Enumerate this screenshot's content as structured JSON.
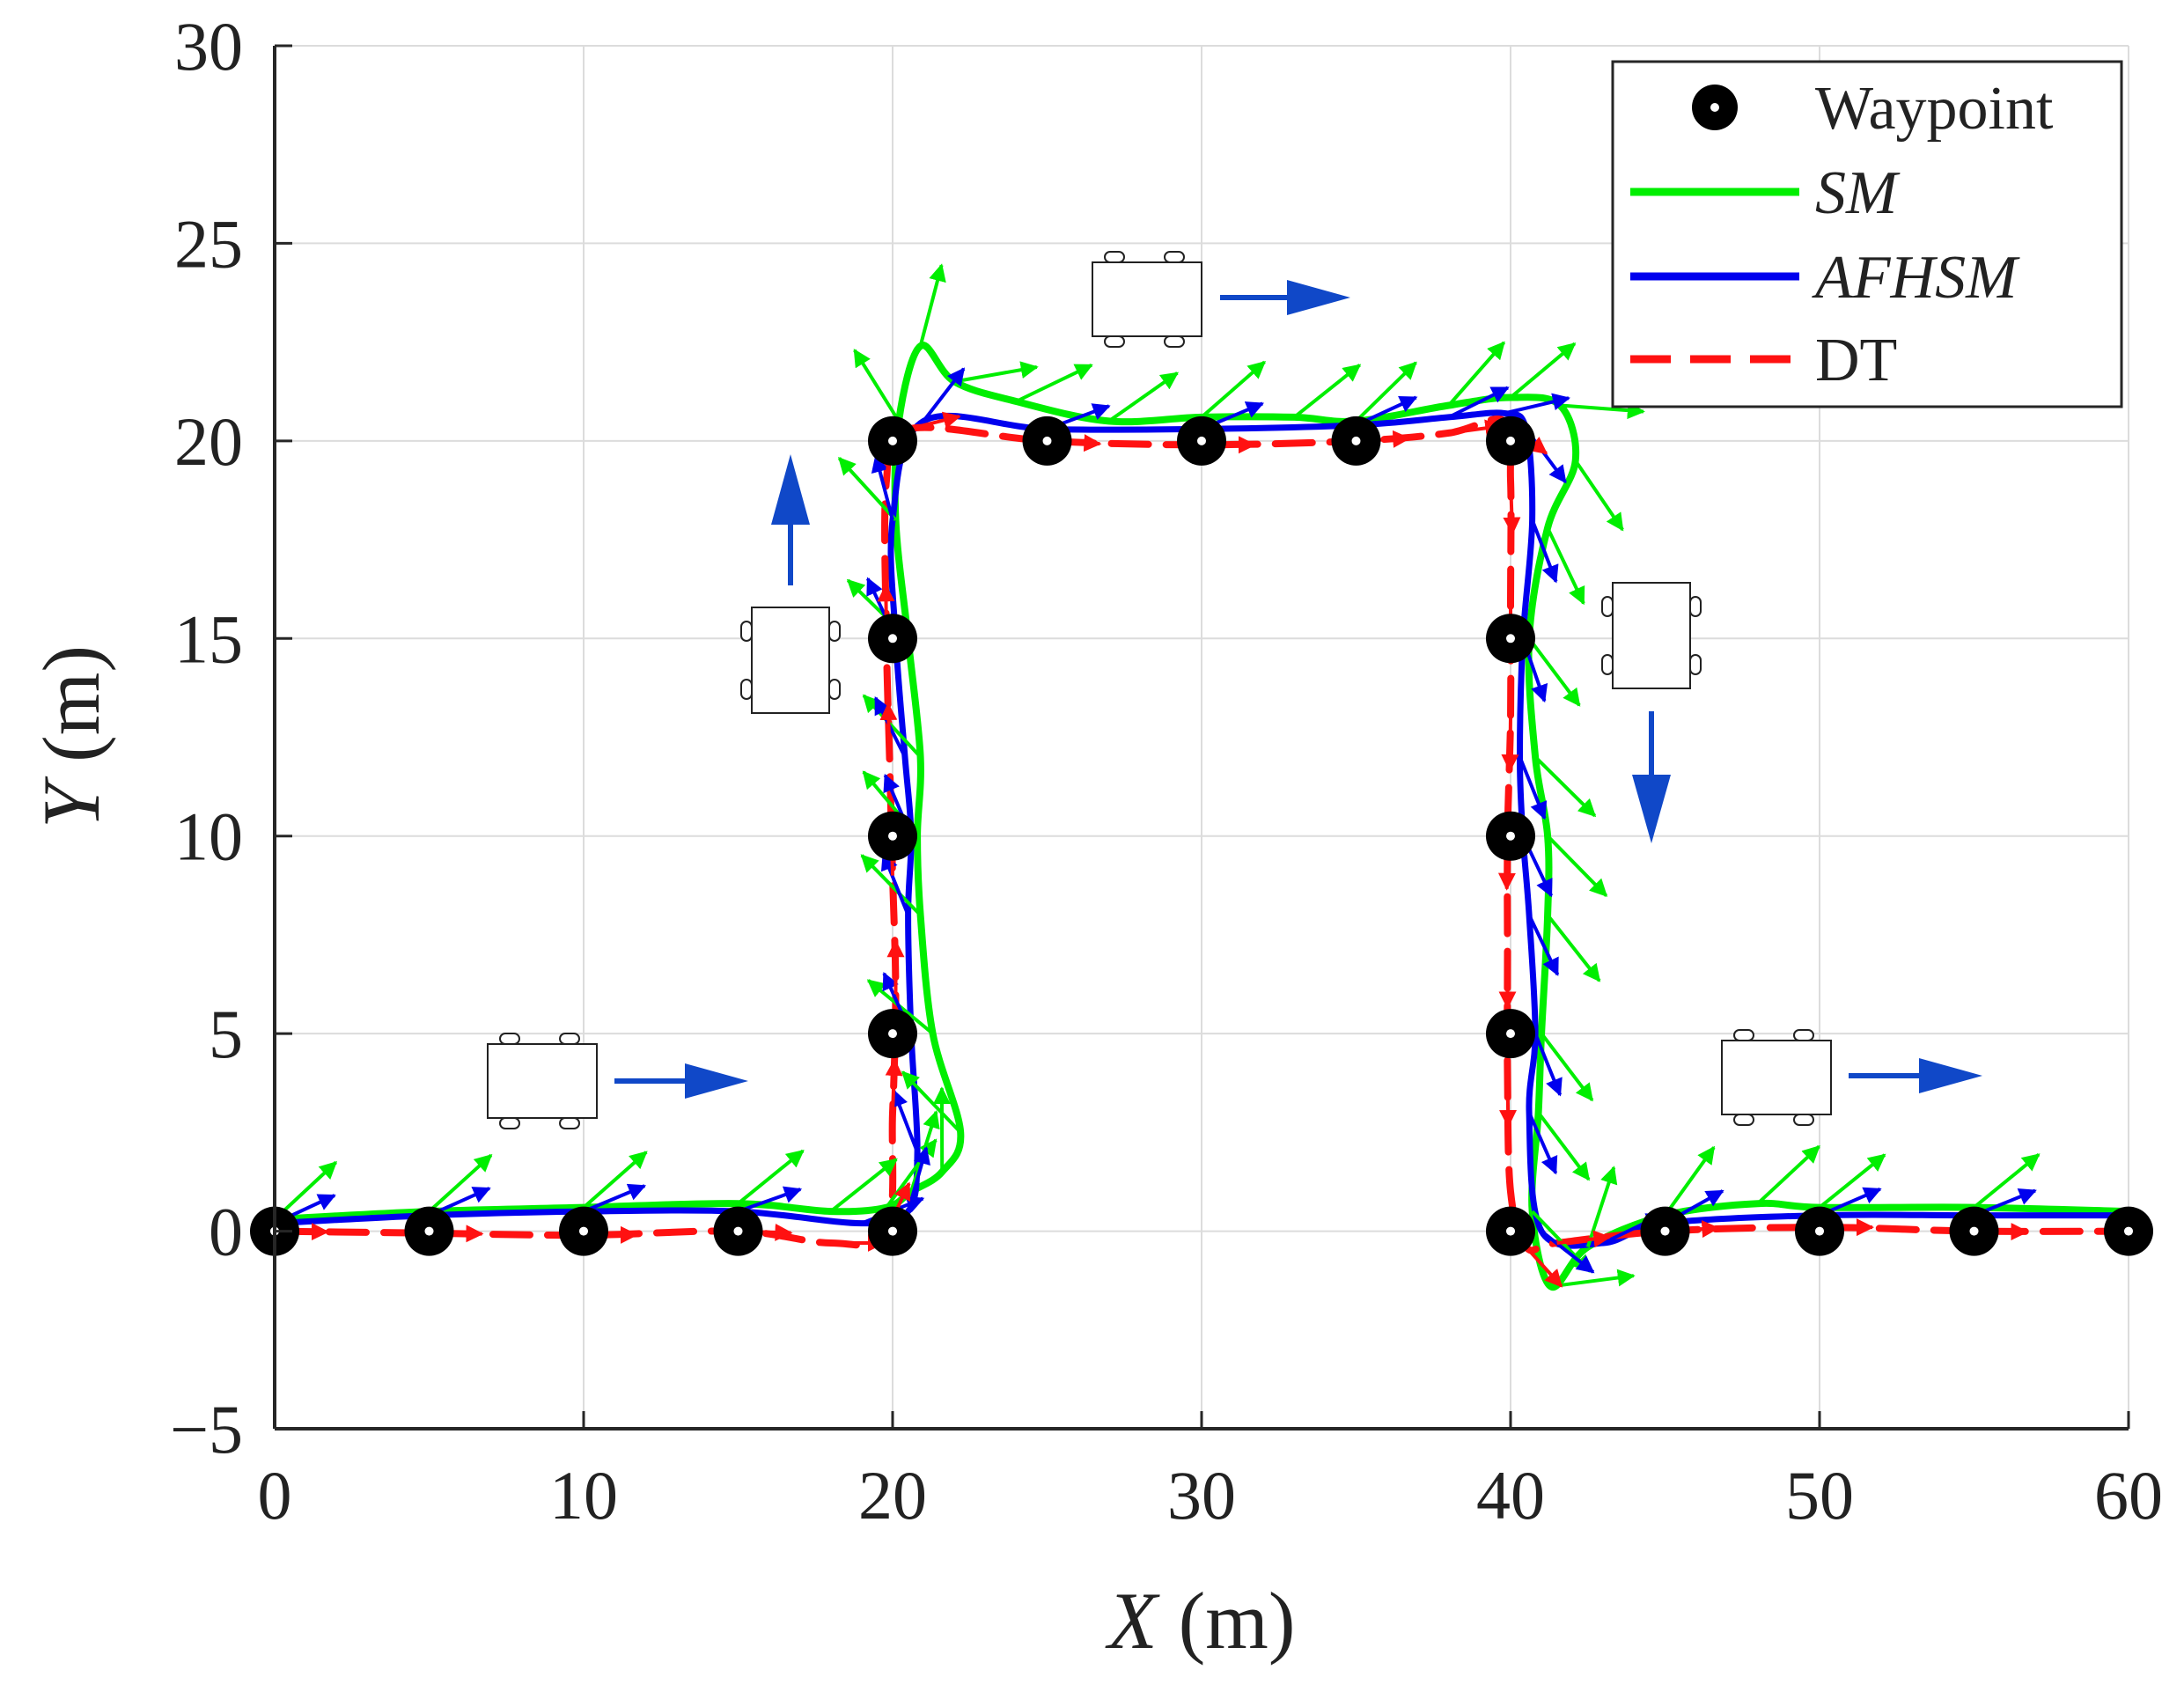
{
  "chart_data": {
    "type": "line",
    "title": "",
    "xlabel": {
      "var": "X",
      "unit": "(m)"
    },
    "ylabel": {
      "var": "Y",
      "unit": "(m)"
    },
    "xlim": [
      0,
      60
    ],
    "ylim": [
      -5,
      30
    ],
    "xticks": [
      "0",
      "10",
      "20",
      "30",
      "40",
      "50",
      "60"
    ],
    "yticks": [
      "−5",
      "0",
      "5",
      "10",
      "15",
      "20",
      "25",
      "30"
    ],
    "grid": true,
    "legend": {
      "position": "top-right",
      "entries": [
        {
          "label": "Waypoint",
          "style": "marker",
          "italic": false
        },
        {
          "label": "SM",
          "style": "solid",
          "italic": true
        },
        {
          "label": "AFHSM",
          "style": "solid",
          "italic": true
        },
        {
          "label": "DT",
          "style": "dashed",
          "italic": false
        }
      ]
    },
    "colors": {
      "SM": "#00ee00",
      "AFHSM": "#0000ee",
      "DT": "#ff1111",
      "waypoint": "#000000",
      "direction_arrow": "#1048c8"
    },
    "waypoints": {
      "x": [
        0,
        5,
        10,
        15,
        20,
        20,
        20,
        20,
        20,
        25,
        30,
        35,
        40,
        40,
        40,
        40,
        40,
        45,
        50,
        55,
        60
      ],
      "y": [
        0,
        0,
        0,
        0,
        0,
        5,
        10,
        15,
        20,
        20,
        20,
        20,
        20,
        15,
        10,
        5,
        0,
        0,
        0,
        0,
        0
      ]
    },
    "series": [
      {
        "name": "SM",
        "x": [
          0,
          5,
          10,
          15,
          18,
          19.8,
          20.6,
          21.6,
          22.2,
          21.3,
          20.9,
          20.8,
          20.9,
          20.5,
          20.1,
          20.2,
          20.9,
          22,
          24,
          27,
          30,
          33,
          35,
          38,
          40,
          41.6,
          42.1,
          41.2,
          40.6,
          40.8,
          41.2,
          41.2,
          41,
          40.9,
          40.7,
          41.3,
          42.5,
          45,
          48,
          50,
          55,
          60
        ],
        "y": [
          0.3,
          0.5,
          0.6,
          0.7,
          0.5,
          0.6,
          1,
          1.5,
          2.5,
          5,
          8,
          10,
          12,
          15,
          18,
          20.5,
          22.4,
          21.5,
          21,
          20.5,
          20.6,
          20.6,
          20.5,
          20.9,
          21.1,
          20.9,
          19.5,
          17.8,
          15,
          12,
          10,
          8,
          5,
          3,
          0.5,
          -1.4,
          -0.4,
          0.4,
          0.7,
          0.6,
          0.6,
          0.5
        ]
      },
      {
        "name": "AFHSM",
        "x": [
          0,
          5,
          10,
          15,
          19,
          20.5,
          20.8,
          20.6,
          20.5,
          20.6,
          20.4,
          20.1,
          20,
          21,
          25,
          30,
          35,
          38,
          39.8,
          40.5,
          40.7,
          40.4,
          40.3,
          40.4,
          40.6,
          40.8,
          40.6,
          41,
          43,
          45,
          50,
          55,
          60
        ],
        "y": [
          0.2,
          0.4,
          0.5,
          0.5,
          0.2,
          0.5,
          2,
          5,
          8,
          10,
          12,
          15,
          18,
          20.5,
          20.3,
          20.3,
          20.4,
          20.6,
          20.7,
          20.3,
          18,
          15,
          12,
          10,
          8,
          5,
          3,
          0,
          -0.3,
          0.2,
          0.4,
          0.4,
          0.4
        ]
      },
      {
        "name": "DT",
        "x": [
          0,
          5,
          10,
          15,
          18,
          19.8,
          20,
          20.1,
          20,
          19.9,
          19.8,
          19.8,
          20.5,
          25,
          30,
          35,
          38,
          39.8,
          40,
          40,
          40,
          39.9,
          39.9,
          39.9,
          40,
          40.5,
          41.5,
          45,
          50,
          55,
          60
        ],
        "y": [
          0,
          -0.05,
          -0.1,
          0,
          -0.3,
          0,
          3,
          6,
          9,
          12,
          15,
          19,
          20.3,
          20,
          19.9,
          20,
          20.2,
          20.5,
          19,
          16,
          13,
          10,
          7,
          4,
          1,
          -0.4,
          -0.3,
          0,
          0.1,
          0,
          0
        ]
      }
    ]
  }
}
